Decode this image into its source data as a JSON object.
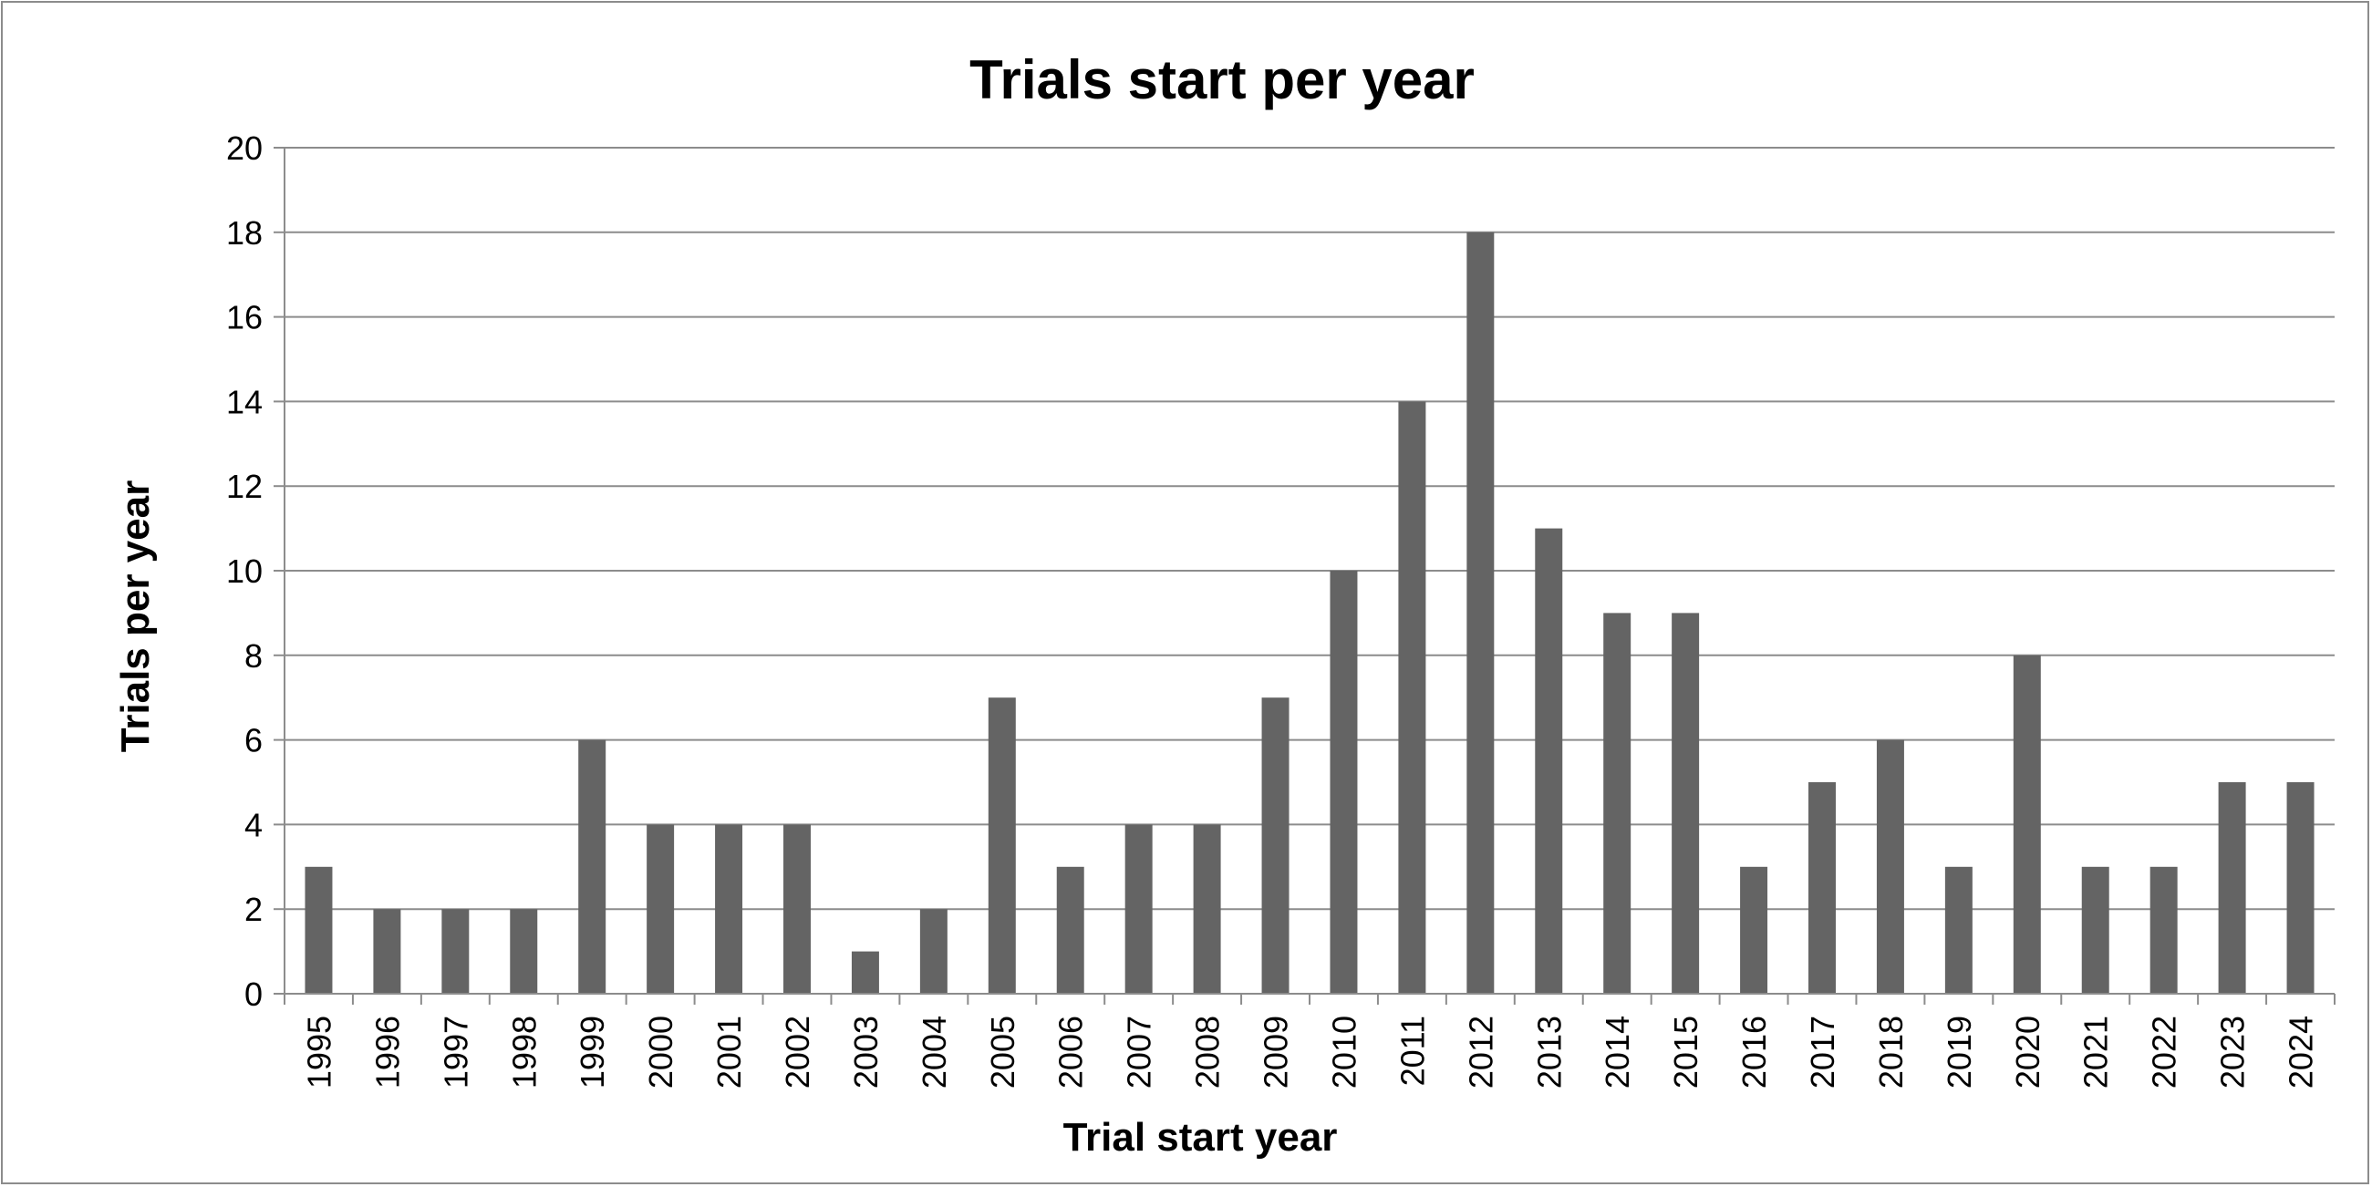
{
  "chart_data": {
    "type": "bar",
    "title": "Trials start per year",
    "xlabel": "Trial start year",
    "ylabel": "Trials per year",
    "ylim": [
      0,
      20
    ],
    "yticks": [
      "0",
      "2",
      "4",
      "6",
      "8",
      "10",
      "12",
      "14",
      "16",
      "18",
      "20"
    ],
    "grid": "horizontal",
    "legend": "none",
    "categories": [
      "1995",
      "1996",
      "1997",
      "1998",
      "1999",
      "2000",
      "2001",
      "2002",
      "2003",
      "2004",
      "2005",
      "2006",
      "2007",
      "2008",
      "2009",
      "2010",
      "2011",
      "2012",
      "2013",
      "2014",
      "2015",
      "2016",
      "2017",
      "2018",
      "2019",
      "2020",
      "2021",
      "2022",
      "2023",
      "2024"
    ],
    "values": [
      3,
      2,
      2,
      2,
      6,
      4,
      4,
      4,
      1,
      2,
      7,
      3,
      4,
      4,
      7,
      10,
      14,
      18,
      11,
      9,
      9,
      3,
      5,
      6,
      3,
      8,
      3,
      3,
      5,
      5
    ],
    "bar_color": "#646464",
    "grid_color": "#8c8c8c",
    "axis_color": "#8c8c8c"
  }
}
